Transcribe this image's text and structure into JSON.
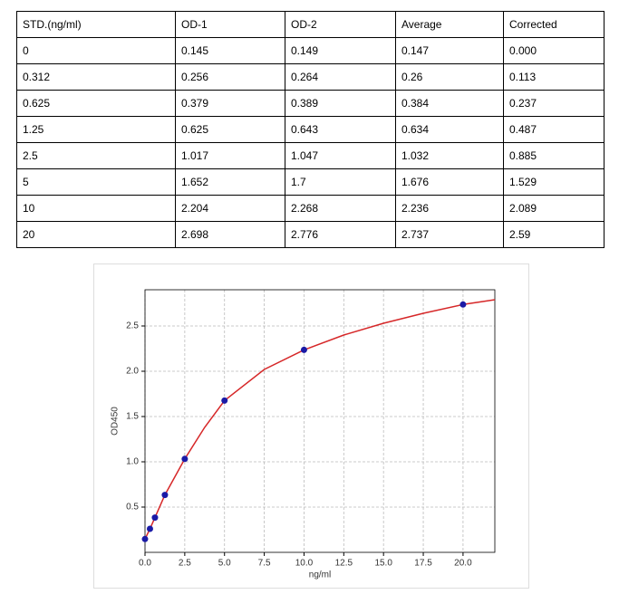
{
  "table": {
    "header": [
      "STD.(ng/ml)",
      "OD-1",
      "OD-2",
      "Average",
      "Corrected"
    ],
    "rows": [
      [
        "0",
        "0.145",
        "0.149",
        "0.147",
        "0.000"
      ],
      [
        "0.312",
        "0.256",
        "0.264",
        "0.26",
        "0.113"
      ],
      [
        "0.625",
        "0.379",
        "0.389",
        "0.384",
        "0.237"
      ],
      [
        "1.25",
        "0.625",
        "0.643",
        "0.634",
        "0.487"
      ],
      [
        "2.5",
        "1.017",
        "1.047",
        "1.032",
        "0.885"
      ],
      [
        "5",
        "1.652",
        "1.7",
        "1.676",
        "1.529"
      ],
      [
        "10",
        "2.204",
        "2.268",
        "2.236",
        "2.089"
      ],
      [
        "20",
        "2.698",
        "2.776",
        "2.737",
        "2.59"
      ]
    ]
  },
  "chart_data": {
    "type": "scatter",
    "x_label": "ng/ml",
    "y_label": "OD450",
    "series": [
      {
        "type": "scatter",
        "color": "#1a1aa6",
        "x": [
          0,
          0.312,
          0.625,
          1.25,
          2.5,
          5,
          10,
          20
        ],
        "values": [
          0.147,
          0.26,
          0.384,
          0.634,
          1.032,
          1.676,
          2.236,
          2.737
        ]
      },
      {
        "type": "line",
        "color": "#d62728",
        "x": [
          0,
          0.312,
          0.625,
          1.25,
          2.5,
          3.75,
          5,
          7.5,
          10,
          12.5,
          15,
          17.5,
          20,
          22
        ],
        "values": [
          0.147,
          0.26,
          0.384,
          0.634,
          1.032,
          1.38,
          1.676,
          2.02,
          2.236,
          2.4,
          2.53,
          2.64,
          2.737,
          2.79
        ]
      }
    ],
    "xlim": [
      0,
      22
    ],
    "ylim": [
      0,
      2.9
    ],
    "xticks": [
      {
        "value": 0,
        "label": "0.0"
      },
      2.5,
      {
        "value": 5,
        "label": "5.0"
      },
      7.5,
      {
        "value": 10,
        "label": "10.0"
      },
      12.5,
      {
        "value": 15,
        "label": "15.0"
      },
      17.5,
      {
        "value": 20,
        "label": "20.0"
      }
    ],
    "yticks": [
      0.5,
      {
        "value": 1,
        "label": "1.0"
      },
      1.5,
      {
        "value": 2,
        "label": "2.0"
      },
      2.5
    ],
    "grid": true
  }
}
